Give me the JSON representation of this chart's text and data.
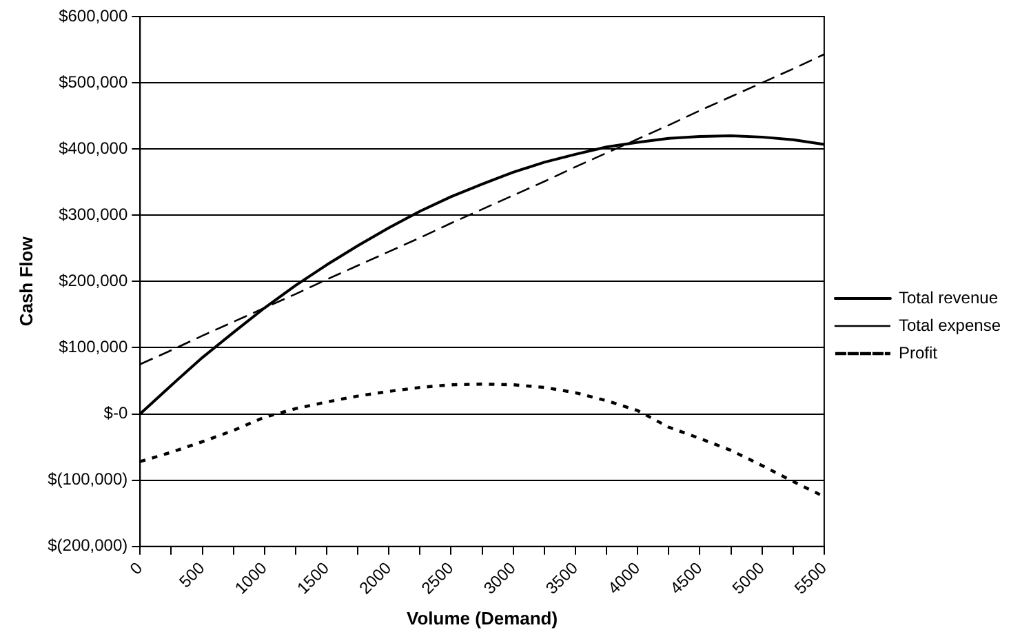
{
  "chart_data": {
    "type": "line",
    "xlabel": "Volume (Demand)",
    "ylabel": "Cash Flow",
    "categories": [
      "0",
      null,
      "500",
      null,
      "1000",
      null,
      "1500",
      null,
      "2000",
      null,
      "2500",
      null,
      "3000",
      null,
      "3500",
      null,
      "4000",
      null,
      "4500",
      null,
      "5000",
      null,
      "5500"
    ],
    "series": [
      {
        "name": "Total revenue",
        "color": "#000000",
        "line_style": "solid",
        "values": [
          0,
          43000,
          85000,
          123000,
          160000,
          194000,
          225000,
          254000,
          281000,
          306000,
          328000,
          347000,
          365000,
          380000,
          392000,
          403000,
          410000,
          416000,
          419000,
          420000,
          418000,
          414000,
          407000
        ]
      },
      {
        "name": "Total expense",
        "color": "#000000",
        "line_style": "dashed",
        "values": [
          75000,
          96000,
          118000,
          139000,
          160000,
          181000,
          203000,
          224000,
          245000,
          266000,
          288000,
          309000,
          330000,
          351000,
          373000,
          394000,
          415000,
          436000,
          458000,
          479000,
          500000,
          521000,
          543000
        ]
      },
      {
        "name": "Profit",
        "color": "#000000",
        "line_style": "dotted",
        "values": [
          -72000,
          -58000,
          -42000,
          -25000,
          -5000,
          8000,
          18000,
          27000,
          34000,
          40000,
          44000,
          45000,
          44000,
          40000,
          32000,
          20000,
          5000,
          -20000,
          -37000,
          -55000,
          -78000,
          -102000,
          -125000
        ]
      }
    ],
    "ylim": [
      -200000,
      600000
    ],
    "yticks": [
      {
        "value": -200000,
        "label": "$(200,000)"
      },
      {
        "value": -100000,
        "label": "$(100,000)"
      },
      {
        "value": 0,
        "label": "$-0"
      },
      {
        "value": 100000,
        "label": "$100,000"
      },
      {
        "value": 200000,
        "label": "$200,000"
      },
      {
        "value": 300000,
        "label": "$300,000"
      },
      {
        "value": 400000,
        "label": "$400,000"
      },
      {
        "value": 500000,
        "label": "$500,000"
      },
      {
        "value": 600000,
        "label": "$600,000"
      }
    ],
    "grid": "y",
    "legend": "right",
    "marker": "none"
  }
}
